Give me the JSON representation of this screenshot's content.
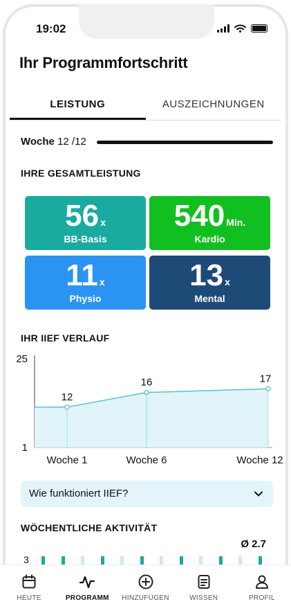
{
  "status": {
    "time": "19:02"
  },
  "title": "Ihr Programmfortschritt",
  "tabs": [
    {
      "label": "LEISTUNG",
      "active": true
    },
    {
      "label": "AUSZEICHNUNGEN",
      "active": false
    }
  ],
  "week": {
    "label": "Woche",
    "value": "12 /12",
    "progress": 1.0
  },
  "performance": {
    "heading": "IHRE GESAMTLEISTUNG",
    "tiles": [
      {
        "value": "56",
        "unit": "x",
        "label": "BB-Basis",
        "color": "#19ab9f"
      },
      {
        "value": "540",
        "unit": "Min.",
        "label": "Kardio",
        "color": "#12bf21"
      },
      {
        "value": "11",
        "unit": "x",
        "label": "Physio",
        "color": "#2b93f2"
      },
      {
        "value": "13",
        "unit": "x",
        "label": "Mental",
        "color": "#1e4a78"
      }
    ]
  },
  "iief": {
    "heading": "IHR IIEF VERLAUF"
  },
  "chart_data": {
    "type": "area",
    "categories": [
      "Woche 1",
      "Woche 6",
      "Woche 12"
    ],
    "x": [
      1,
      6,
      12
    ],
    "values": [
      12,
      16,
      17
    ],
    "ylim": [
      1,
      25
    ],
    "yticks": [
      "25",
      "1"
    ],
    "colors": {
      "line": "#5bbfd0",
      "fill": "#e0f4fa"
    }
  },
  "faq": {
    "label": "Wie funktioniert IIEF?"
  },
  "activity": {
    "heading": "WÖCHENTLICHE AKTIVITÄT",
    "average": "Ø 2.7",
    "axis_label": "3"
  },
  "nav": [
    {
      "label": "HEUTE",
      "icon": "calendar-icon",
      "active": false
    },
    {
      "label": "PROGRAMM",
      "icon": "activity-icon",
      "active": true
    },
    {
      "label": "HINZUFÜGEN",
      "icon": "add-circle-icon",
      "active": false
    },
    {
      "label": "WISSEN",
      "icon": "document-icon",
      "active": false
    },
    {
      "label": "PROFIL",
      "icon": "profile-icon",
      "active": false
    }
  ]
}
